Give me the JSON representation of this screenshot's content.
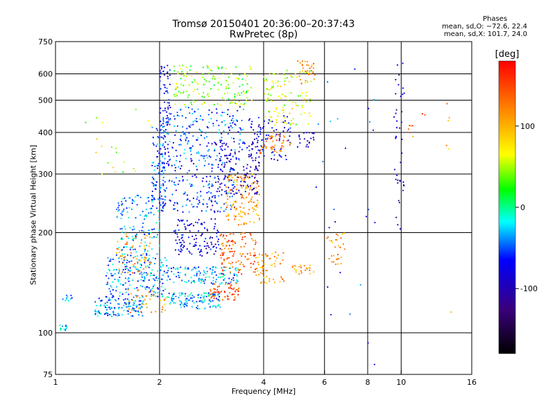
{
  "chart_data": {
    "type": "scatter",
    "title": "Tromsø 20150401 20:36:00–20:37:43",
    "subtitle": "RwPretec (8p)",
    "phases_header": "Phases",
    "phase_stats": [
      "mean, sd,O: −72.6, 22.4",
      "mean, sd,X: 101.7, 24.0"
    ],
    "xlabel": "Frequency [MHz]",
    "ylabel": "Stationary phase Virtual Height [km]",
    "xscale": "log",
    "yscale": "log",
    "xlim": [
      1,
      16
    ],
    "ylim": [
      75,
      750
    ],
    "xticks": [
      1,
      2,
      4,
      6,
      8,
      10,
      16
    ],
    "yticks": [
      75,
      100,
      200,
      300,
      400,
      500,
      600,
      750
    ],
    "xgrid": [
      2,
      4,
      6,
      8,
      10
    ],
    "ygrid": [
      100,
      200,
      300,
      400,
      500,
      600
    ],
    "colorbar": {
      "label": "[deg]",
      "range": [
        -180,
        180
      ],
      "ticks": [
        100,
        0,
        -100
      ],
      "colors": [
        "#000000",
        "#3a007a",
        "#0000ff",
        "#00ffff",
        "#00ff00",
        "#ffff00",
        "#ff8000",
        "#ff0000"
      ]
    },
    "clusters": [
      {
        "f": [
          1.02,
          1.08
        ],
        "h": [
          101,
          106
        ],
        "phase": -28,
        "n": 14
      },
      {
        "f": [
          1.05,
          1.12
        ],
        "h": [
          124,
          132
        ],
        "phase": -30,
        "n": 10
      },
      {
        "f": [
          1.3,
          1.8
        ],
        "h": [
          112,
          128
        ],
        "phase": -40,
        "n": 130
      },
      {
        "f": [
          1.4,
          2.1
        ],
        "h": [
          128,
          170
        ],
        "phase": -38,
        "n": 200
      },
      {
        "f": [
          1.5,
          1.9
        ],
        "h": [
          150,
          200
        ],
        "phase": 115,
        "n": 60
      },
      {
        "f": [
          1.5,
          2.0
        ],
        "h": [
          170,
          260
        ],
        "phase": -35,
        "n": 140
      },
      {
        "f": [
          1.6,
          2.1
        ],
        "h": [
          115,
          135
        ],
        "phase": 115,
        "n": 40
      },
      {
        "f": [
          1.9,
          2.1
        ],
        "h": [
          240,
          420
        ],
        "phase": -55,
        "n": 120
      },
      {
        "f": [
          2.0,
          2.15
        ],
        "h": [
          420,
          640
        ],
        "phase": -75,
        "n": 60
      },
      {
        "f": [
          2.1,
          3.0
        ],
        "h": [
          118,
          132
        ],
        "phase": -30,
        "n": 120
      },
      {
        "f": [
          2.1,
          3.4
        ],
        "h": [
          140,
          158
        ],
        "phase": -32,
        "n": 130
      },
      {
        "f": [
          2.2,
          3.0
        ],
        "h": [
          170,
          220
        ],
        "phase": -85,
        "n": 120
      },
      {
        "f": [
          2.0,
          3.3
        ],
        "h": [
          230,
          330
        ],
        "phase": -60,
        "n": 180
      },
      {
        "f": [
          2.1,
          3.5
        ],
        "h": [
          330,
          480
        ],
        "phase": -50,
        "n": 200
      },
      {
        "f": [
          2.2,
          3.7
        ],
        "h": [
          480,
          640
        ],
        "phase": 40,
        "n": 160
      },
      {
        "f": [
          2.8,
          3.4
        ],
        "h": [
          125,
          142
        ],
        "phase": 145,
        "n": 60
      },
      {
        "f": [
          3.0,
          3.8
        ],
        "h": [
          150,
          200
        ],
        "phase": 140,
        "n": 110
      },
      {
        "f": [
          3.1,
          3.9
        ],
        "h": [
          210,
          300
        ],
        "phase": 110,
        "n": 130
      },
      {
        "f": [
          2.9,
          3.9
        ],
        "h": [
          260,
          380
        ],
        "phase": -95,
        "n": 130
      },
      {
        "f": [
          3.6,
          4.8
        ],
        "h": [
          330,
          450
        ],
        "phase": -80,
        "n": 90
      },
      {
        "f": [
          3.8,
          4.6
        ],
        "h": [
          140,
          175
        ],
        "phase": 110,
        "n": 60
      },
      {
        "f": [
          3.9,
          4.8
        ],
        "h": [
          345,
          400
        ],
        "phase": 130,
        "n": 50
      },
      {
        "f": [
          4.0,
          5.5
        ],
        "h": [
          420,
          620
        ],
        "phase": 60,
        "n": 110
      },
      {
        "f": [
          4.8,
          5.6
        ],
        "h": [
          150,
          160
        ],
        "phase": 110,
        "n": 25
      },
      {
        "f": [
          5.0,
          5.8
        ],
        "h": [
          560,
          660
        ],
        "phase": 120,
        "n": 30
      },
      {
        "f": [
          5.0,
          5.6
        ],
        "h": [
          360,
          400
        ],
        "phase": -100,
        "n": 20
      },
      {
        "f": [
          6.1,
          7.0
        ],
        "h": [
          160,
          200
        ],
        "phase": 110,
        "n": 30
      },
      {
        "f": [
          5.5,
          8.5
        ],
        "h": [
          80,
          640
        ],
        "phase": -60,
        "n": 25
      },
      {
        "f": [
          9.5,
          10.2
        ],
        "h": [
          200,
          650
        ],
        "phase": -100,
        "n": 40
      },
      {
        "f": [
          10.5,
          12
        ],
        "h": [
          380,
          460
        ],
        "phase": 130,
        "n": 8
      },
      {
        "f": [
          1.2,
          1.9
        ],
        "h": [
          300,
          480
        ],
        "phase": 60,
        "n": 20
      },
      {
        "f": [
          13.5,
          14
        ],
        "h": [
          105,
          550
        ],
        "phase": 110,
        "n": 6
      }
    ]
  }
}
